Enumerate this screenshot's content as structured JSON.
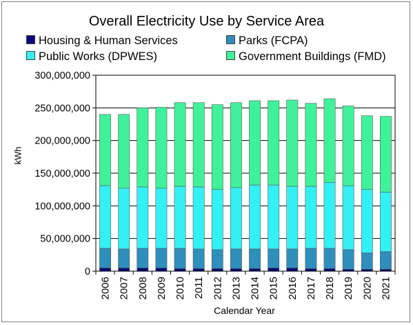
{
  "chart_data": {
    "type": "bar",
    "stacked": true,
    "title": "Overall Electricity Use by Service Area",
    "xlabel": "Calendar Year",
    "ylabel": "kWh",
    "ylim": [
      0,
      300000000
    ],
    "yticks": [
      "0",
      "50,000,000",
      "100,000,000",
      "150,000,000",
      "200,000,000",
      "250,000,000",
      "300,000,000"
    ],
    "grid": true,
    "legend_position": "top",
    "categories": [
      "2006",
      "2007",
      "2008",
      "2009",
      "2010",
      "2011",
      "2012",
      "2013",
      "2014",
      "2015",
      "2016",
      "2017",
      "2018",
      "2019",
      "2020",
      "2021"
    ],
    "series": [
      {
        "name": "Housing & Human Services",
        "color": "#0a0a7a",
        "values": [
          5000000,
          5000000,
          5000000,
          5000000,
          4000000,
          4000000,
          4000000,
          4000000,
          4000000,
          5000000,
          5000000,
          4000000,
          4000000,
          3000000,
          3000000,
          3000000
        ]
      },
      {
        "name": "Parks (FCPA)",
        "color": "#2e8fbd",
        "values": [
          30000000,
          29000000,
          30000000,
          30000000,
          31000000,
          30000000,
          29000000,
          30000000,
          30000000,
          29000000,
          29000000,
          31000000,
          31000000,
          30000000,
          25000000,
          27000000
        ]
      },
      {
        "name": "Public Works (DPWES)",
        "color": "#33f0f5",
        "values": [
          96000000,
          93000000,
          94000000,
          92000000,
          95000000,
          95000000,
          92000000,
          94000000,
          98000000,
          98000000,
          96000000,
          95000000,
          101000000,
          98000000,
          97000000,
          91000000
        ]
      },
      {
        "name": "Government Buildings (FMD)",
        "color": "#3ff29a",
        "values": [
          109000000,
          113000000,
          121000000,
          124000000,
          128000000,
          129000000,
          130000000,
          130000000,
          129000000,
          129000000,
          132000000,
          127000000,
          128000000,
          122000000,
          113000000,
          116000000
        ]
      }
    ]
  }
}
